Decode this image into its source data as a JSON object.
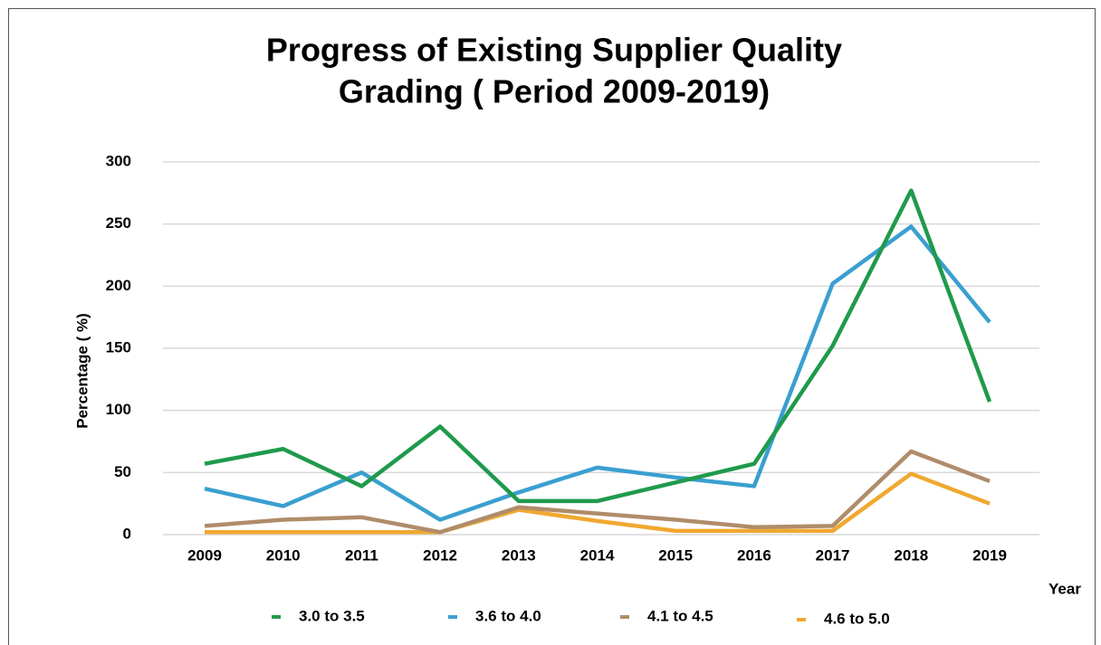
{
  "chart_data": {
    "type": "line",
    "title": [
      "Progress of Existing Supplier Quality",
      "Grading ( Period 2009-2019)"
    ],
    "y_label": "Percentage ( %)",
    "x_label": "Year",
    "categories": [
      "2009",
      "2010",
      "2011",
      "2012",
      "2013",
      "2014",
      "2015",
      "2016",
      "2017",
      "2018",
      "2019"
    ],
    "series": [
      {
        "name": "3.0 to 3.5",
        "color": "#1f9a4c",
        "values": [
          57,
          69,
          39,
          87,
          27,
          27,
          42,
          57,
          152,
          277,
          107
        ]
      },
      {
        "name": "3.6 to 4.0",
        "color": "#3a9fd0",
        "values": [
          37,
          23,
          50,
          12,
          34,
          54,
          46,
          39,
          202,
          248,
          171
        ]
      },
      {
        "name": "4.1 to 4.5",
        "color": "#b08c6a",
        "values": [
          7,
          12,
          14,
          2,
          22,
          17,
          12,
          6,
          7,
          67,
          43
        ]
      },
      {
        "name": "4.6 to 5.0",
        "color": "#f0a830",
        "values": [
          2,
          2,
          2,
          2,
          20,
          11,
          3,
          3,
          3,
          49,
          25
        ]
      }
    ],
    "ylim": [
      0,
      300
    ],
    "yticks": [
      0,
      50,
      100,
      150,
      200,
      250,
      300
    ],
    "grid": true
  }
}
